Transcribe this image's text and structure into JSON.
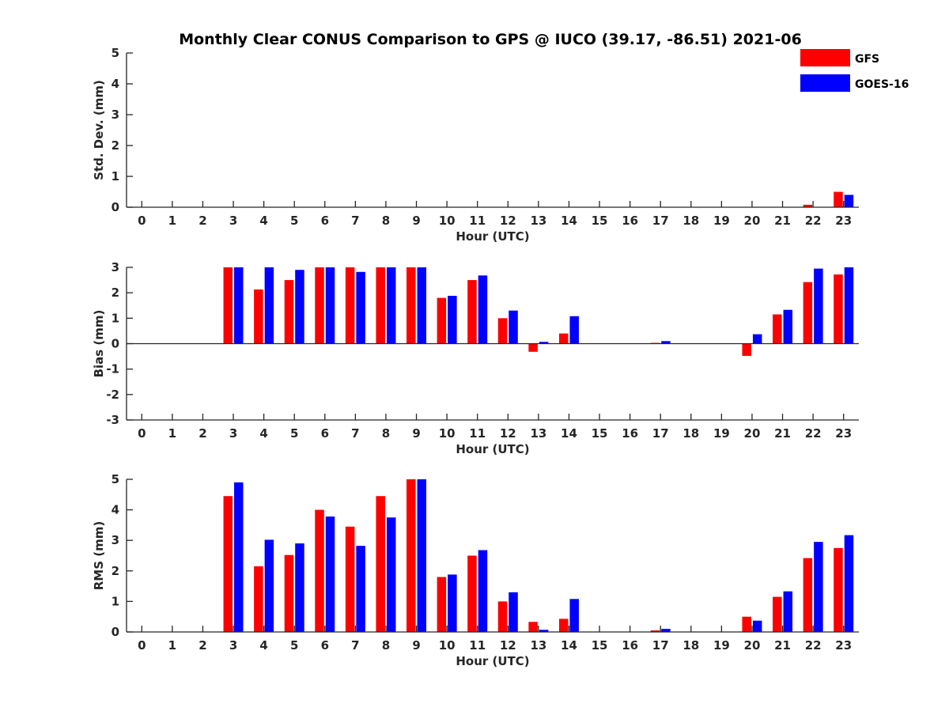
{
  "title": "Monthly Clear CONUS Comparison to GPS @ IUCO (39.17, -86.51) 2021-06",
  "legend": [
    {
      "name": "GFS",
      "color": "#ff0000"
    },
    {
      "name": "GOES-16",
      "color": "#0000ff"
    }
  ],
  "chart_data": [
    {
      "type": "bar",
      "panel": "std-dev",
      "ylabel": "Std. Dev. (mm)",
      "xlabel": "Hour (UTC)",
      "ylim": [
        0,
        5
      ],
      "yticks": [
        0,
        1,
        2,
        3,
        4,
        5
      ],
      "categories": [
        "0",
        "1",
        "2",
        "3",
        "4",
        "5",
        "6",
        "7",
        "8",
        "9",
        "10",
        "11",
        "12",
        "13",
        "14",
        "15",
        "16",
        "17",
        "18",
        "19",
        "20",
        "21",
        "22",
        "23"
      ],
      "series": [
        {
          "name": "GFS",
          "values": [
            0,
            0,
            0,
            0,
            0,
            0,
            0,
            0,
            0,
            0,
            0,
            0,
            0,
            0,
            0,
            0,
            0,
            0,
            0,
            0,
            0,
            0,
            0.08,
            0.5
          ]
        },
        {
          "name": "GOES-16",
          "values": [
            0,
            0,
            0,
            0,
            0,
            0,
            0,
            0,
            0,
            0,
            0,
            0,
            0,
            0,
            0,
            0,
            0,
            0,
            0,
            0,
            0,
            0,
            0,
            0.4
          ]
        }
      ]
    },
    {
      "type": "bar",
      "panel": "bias",
      "ylabel": "Bias (mm)",
      "xlabel": "Hour (UTC)",
      "ylim": [
        -3,
        3
      ],
      "yticks": [
        -3,
        -2,
        -1,
        0,
        1,
        2,
        3
      ],
      "categories": [
        "0",
        "1",
        "2",
        "3",
        "4",
        "5",
        "6",
        "7",
        "8",
        "9",
        "10",
        "11",
        "12",
        "13",
        "14",
        "15",
        "16",
        "17",
        "18",
        "19",
        "20",
        "21",
        "22",
        "23"
      ],
      "series": [
        {
          "name": "GFS",
          "values": [
            0,
            0,
            0,
            3,
            2.13,
            2.5,
            3,
            3,
            3,
            3,
            1.8,
            2.5,
            1,
            -0.32,
            0.4,
            0,
            0,
            0.03,
            0,
            0,
            -0.48,
            1.15,
            2.42,
            2.72
          ]
        },
        {
          "name": "GOES-16",
          "values": [
            0,
            0,
            0,
            3,
            3,
            2.9,
            3,
            2.82,
            3,
            3,
            1.88,
            2.68,
            1.3,
            0.07,
            1.08,
            0,
            0,
            0.1,
            0,
            0,
            0.37,
            1.33,
            2.95,
            3
          ]
        }
      ]
    },
    {
      "type": "bar",
      "panel": "rms",
      "ylabel": "RMS (mm)",
      "xlabel": "Hour (UTC)",
      "ylim": [
        0,
        5
      ],
      "yticks": [
        0,
        1,
        2,
        3,
        4,
        5
      ],
      "categories": [
        "0",
        "1",
        "2",
        "3",
        "4",
        "5",
        "6",
        "7",
        "8",
        "9",
        "10",
        "11",
        "12",
        "13",
        "14",
        "15",
        "16",
        "17",
        "18",
        "19",
        "20",
        "21",
        "22",
        "23"
      ],
      "series": [
        {
          "name": "GFS",
          "values": [
            0,
            0,
            0,
            4.45,
            2.15,
            2.52,
            4,
            3.45,
            4.45,
            5,
            1.8,
            2.5,
            1,
            0.33,
            0.43,
            0,
            0,
            0.05,
            0,
            0,
            0.5,
            1.15,
            2.42,
            2.75
          ]
        },
        {
          "name": "GOES-16",
          "values": [
            0,
            0,
            0,
            4.9,
            3.02,
            2.9,
            3.78,
            2.82,
            3.75,
            5,
            1.88,
            2.68,
            1.3,
            0.07,
            1.08,
            0,
            0,
            0.1,
            0,
            0,
            0.37,
            1.33,
            2.95,
            3.17
          ]
        }
      ]
    }
  ]
}
